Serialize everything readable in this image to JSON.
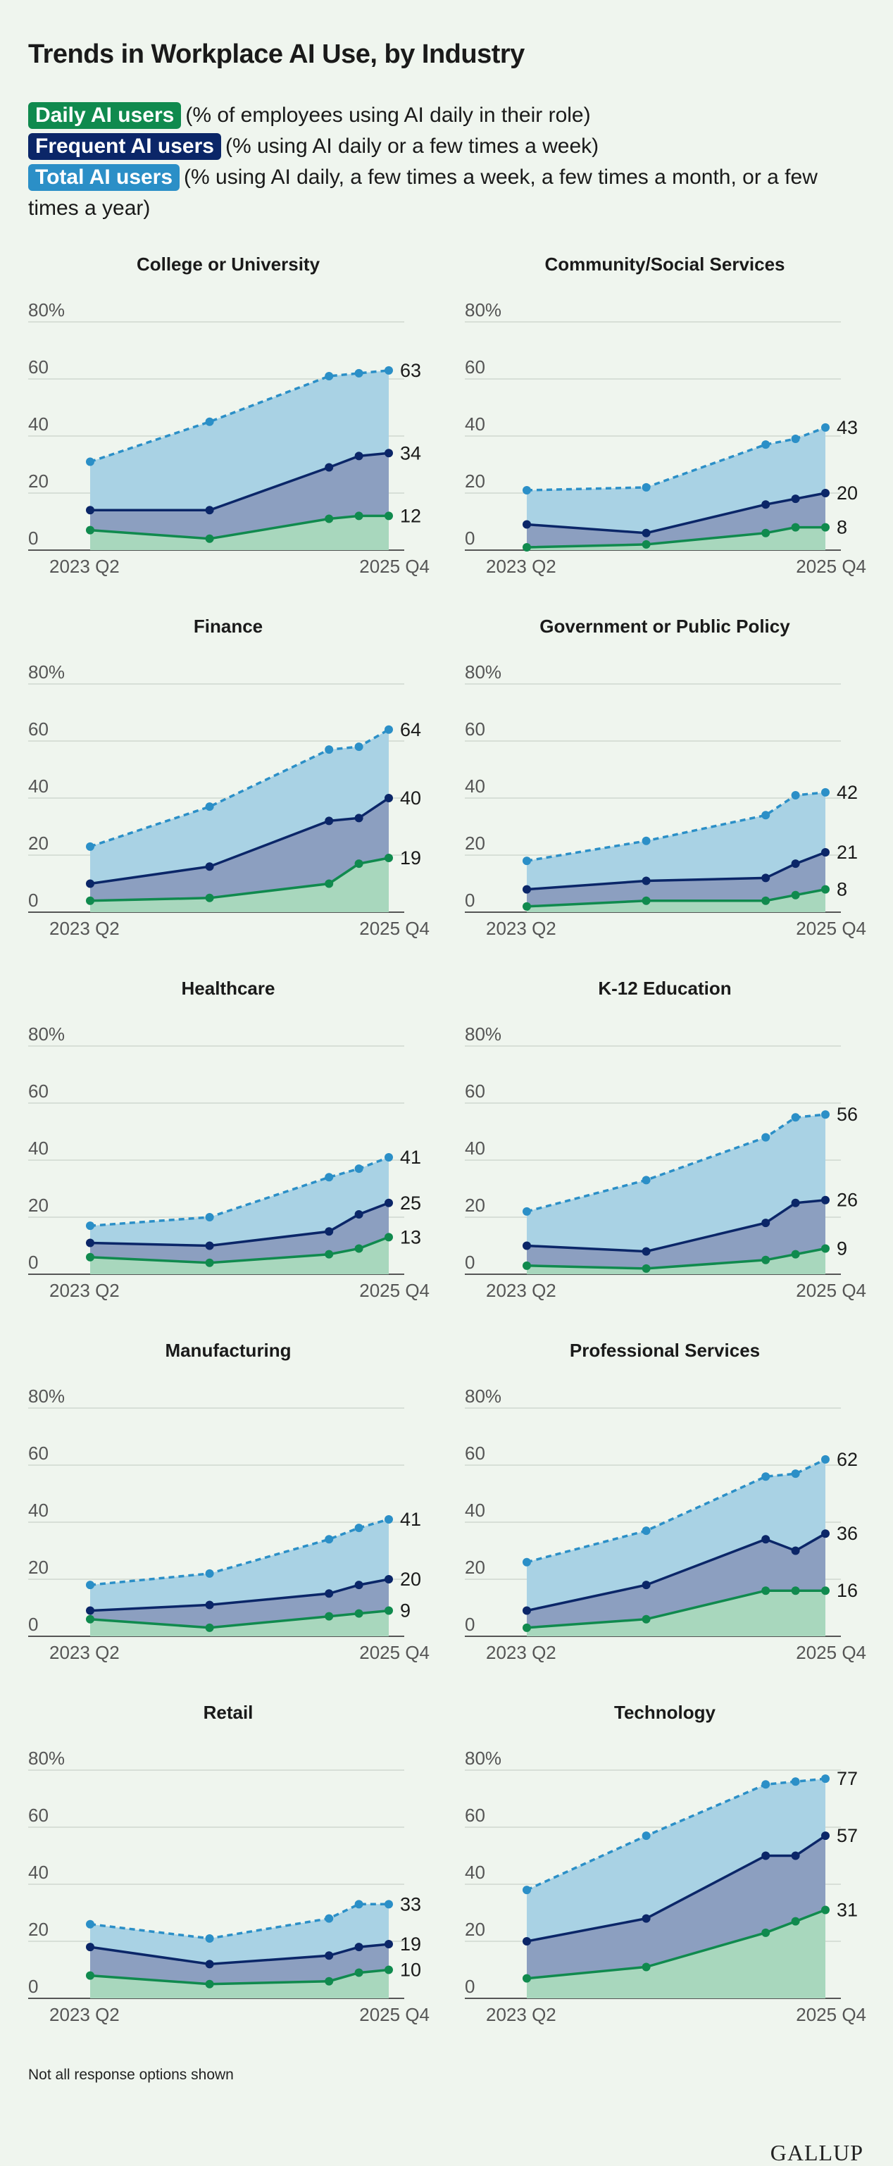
{
  "title": "Trends in Workplace AI Use, by Industry",
  "legend": [
    {
      "label": "Daily AI users",
      "description": "(% of employees using AI daily in their role)",
      "color": "#108a4e"
    },
    {
      "label": "Frequent AI users",
      "description": "(% using AI daily or a few times a week)",
      "color": "#0b2668"
    },
    {
      "label": "Total AI users",
      "description": "(% using AI daily, a few times a week, a few times a month, or a few times a year)",
      "color": "#2b8fc7"
    }
  ],
  "footnote": "Not all response options shown",
  "logo": "GALLUP",
  "chart_data": {
    "type": "area",
    "y_ticks": [
      "80%",
      "60",
      "40",
      "20",
      "0"
    ],
    "ylim": [
      0,
      80
    ],
    "x_start_label": "2023 Q2",
    "x_end_label": "2025 Q4",
    "x": [
      0,
      4,
      8,
      9,
      10
    ],
    "xlim": [
      0,
      10
    ],
    "series_names": [
      "Daily AI users",
      "Frequent AI users",
      "Total AI users"
    ],
    "panels": [
      {
        "title": "College or University",
        "daily": [
          7,
          4,
          11,
          12,
          12
        ],
        "frequent": [
          14,
          14,
          29,
          33,
          34
        ],
        "total": [
          31,
          45,
          61,
          62,
          63
        ]
      },
      {
        "title": "Community/Social Services",
        "daily": [
          1,
          2,
          6,
          8,
          8
        ],
        "frequent": [
          9,
          6,
          16,
          18,
          20
        ],
        "total": [
          21,
          22,
          37,
          39,
          43
        ]
      },
      {
        "title": "Finance",
        "daily": [
          4,
          5,
          10,
          17,
          19
        ],
        "frequent": [
          10,
          16,
          32,
          33,
          40
        ],
        "total": [
          23,
          37,
          57,
          58,
          64
        ]
      },
      {
        "title": "Government or Public Policy",
        "daily": [
          2,
          4,
          4,
          6,
          8
        ],
        "frequent": [
          8,
          11,
          12,
          17,
          21
        ],
        "total": [
          18,
          25,
          34,
          41,
          42
        ]
      },
      {
        "title": "Healthcare",
        "daily": [
          6,
          4,
          7,
          9,
          13
        ],
        "frequent": [
          11,
          10,
          15,
          21,
          25
        ],
        "total": [
          17,
          20,
          34,
          37,
          41
        ]
      },
      {
        "title": "K-12 Education",
        "daily": [
          3,
          2,
          5,
          7,
          9
        ],
        "frequent": [
          10,
          8,
          18,
          25,
          26
        ],
        "total": [
          22,
          33,
          48,
          55,
          56
        ]
      },
      {
        "title": "Manufacturing",
        "daily": [
          6,
          3,
          7,
          8,
          9
        ],
        "frequent": [
          9,
          11,
          15,
          18,
          20
        ],
        "total": [
          18,
          22,
          34,
          38,
          41
        ]
      },
      {
        "title": "Professional Services",
        "daily": [
          3,
          6,
          16,
          16,
          16
        ],
        "frequent": [
          9,
          18,
          34,
          30,
          36
        ],
        "total": [
          26,
          37,
          56,
          57,
          62
        ]
      },
      {
        "title": "Retail",
        "daily": [
          8,
          5,
          6,
          9,
          10
        ],
        "frequent": [
          18,
          12,
          15,
          18,
          19
        ],
        "total": [
          26,
          21,
          28,
          33,
          33
        ]
      },
      {
        "title": "Technology",
        "daily": [
          7,
          11,
          23,
          27,
          31
        ],
        "frequent": [
          20,
          28,
          50,
          50,
          57
        ],
        "total": [
          38,
          57,
          75,
          76,
          77
        ]
      }
    ]
  }
}
